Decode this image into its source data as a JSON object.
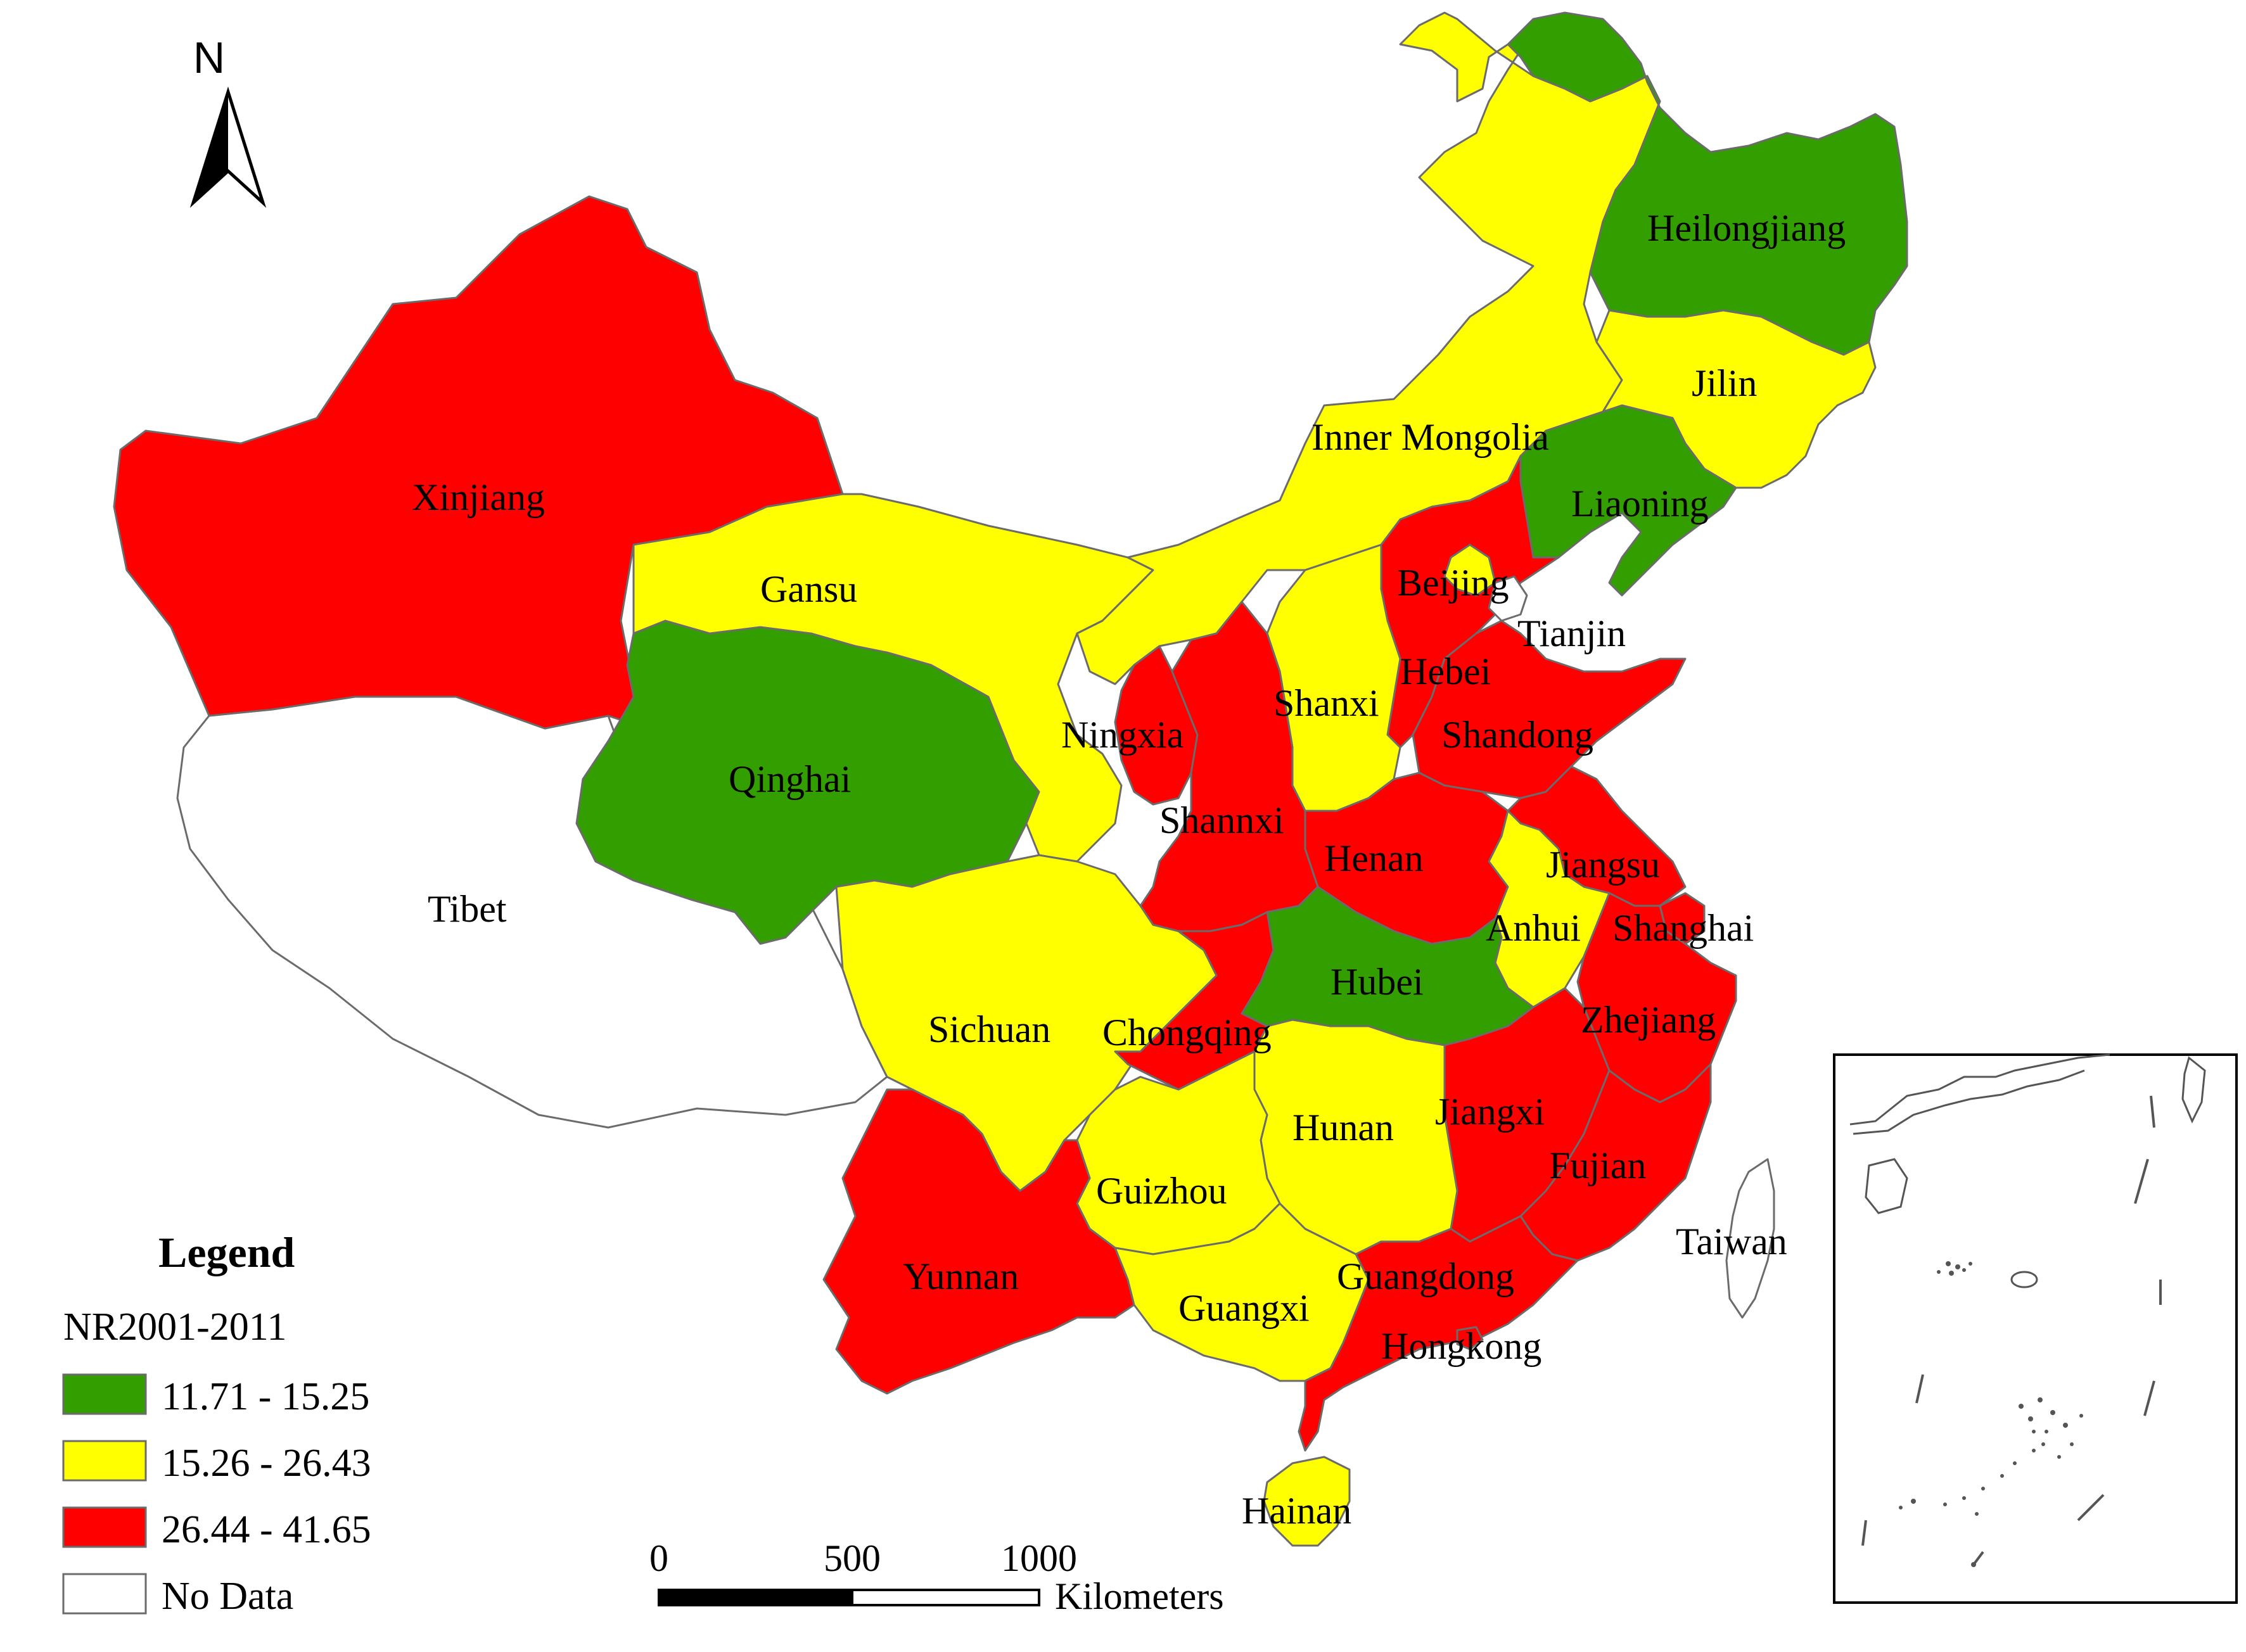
{
  "colors": {
    "class1": "#339e00",
    "class2": "#ffff00",
    "class3": "#ff0000",
    "nodata": "#ffffff"
  },
  "north_arrow": {
    "label": "N"
  },
  "legend": {
    "title": "Legend",
    "field": "NR2001-2011",
    "classes": [
      {
        "label": "11.71 - 15.25",
        "color": "#339e00"
      },
      {
        "label": "15.26 - 26.43",
        "color": "#ffff00"
      },
      {
        "label": "26.44 - 41.65",
        "color": "#ff0000"
      },
      {
        "label": "No Data",
        "color": "#ffffff"
      }
    ]
  },
  "scale_bar": {
    "ticks": [
      "0",
      "500",
      "1000"
    ],
    "unit": "Kilometers"
  },
  "provinces": {
    "heilongjiang": {
      "name": "Heilongjiang",
      "class": "11.71 - 15.25"
    },
    "jilin": {
      "name": "Jilin",
      "class": "15.26 - 26.43"
    },
    "inner_mongolia": {
      "name": "Inner Mongolia",
      "class": "15.26 - 26.43"
    },
    "liaoning": {
      "name": "Liaoning",
      "class": "11.71 - 15.25"
    },
    "beijing": {
      "name": "Beijing",
      "class": "15.26 - 26.43"
    },
    "tianjin": {
      "name": "Tianjin",
      "class": "No Data"
    },
    "hebei": {
      "name": "Hebei",
      "class": "26.44 - 41.65"
    },
    "shandong": {
      "name": "Shandong",
      "class": "26.44 - 41.65"
    },
    "shanxi": {
      "name": "Shanxi",
      "class": "15.26 - 26.43"
    },
    "xinjiang": {
      "name": "Xinjiang",
      "class": "26.44 - 41.65"
    },
    "gansu": {
      "name": "Gansu",
      "class": "15.26 - 26.43"
    },
    "qinghai": {
      "name": "Qinghai",
      "class": "11.71 - 15.25"
    },
    "ningxia": {
      "name": "Ningxia",
      "class": "26.44 - 41.65"
    },
    "shannxi": {
      "name": "Shannxi",
      "class": "26.44 - 41.65"
    },
    "henan": {
      "name": "Henan",
      "class": "26.44 - 41.65"
    },
    "jiangsu": {
      "name": "Jiangsu",
      "class": "26.44 - 41.65"
    },
    "anhui": {
      "name": "Anhui",
      "class": "15.26 - 26.43"
    },
    "shanghai": {
      "name": "Shanghai",
      "class": "26.44 - 41.65"
    },
    "tibet": {
      "name": "Tibet",
      "class": "No Data"
    },
    "sichuan": {
      "name": "Sichuan",
      "class": "15.26 - 26.43"
    },
    "chongqing": {
      "name": "Chongqing",
      "class": "26.44 - 41.65"
    },
    "hubei": {
      "name": "Hubei",
      "class": "11.71 - 15.25"
    },
    "zhejiang": {
      "name": "Zhejiang",
      "class": "26.44 - 41.65"
    },
    "hunan": {
      "name": "Hunan",
      "class": "15.26 - 26.43"
    },
    "jiangxi": {
      "name": "Jiangxi",
      "class": "26.44 - 41.65"
    },
    "guizhou": {
      "name": "Guizhou",
      "class": "15.26 - 26.43"
    },
    "fujian": {
      "name": "Fujian",
      "class": "26.44 - 41.65"
    },
    "taiwan": {
      "name": "Taiwan",
      "class": "No Data"
    },
    "yunnan": {
      "name": "Yunnan",
      "class": "26.44 - 41.65"
    },
    "guangxi": {
      "name": "Guangxi",
      "class": "15.26 - 26.43"
    },
    "guangdong": {
      "name": "Guangdong",
      "class": "26.44 - 41.65"
    },
    "hongkong": {
      "name": "Hongkong",
      "class": "26.44 - 41.65"
    },
    "hainan": {
      "name": "Hainan",
      "class": "15.26 - 26.43"
    }
  }
}
